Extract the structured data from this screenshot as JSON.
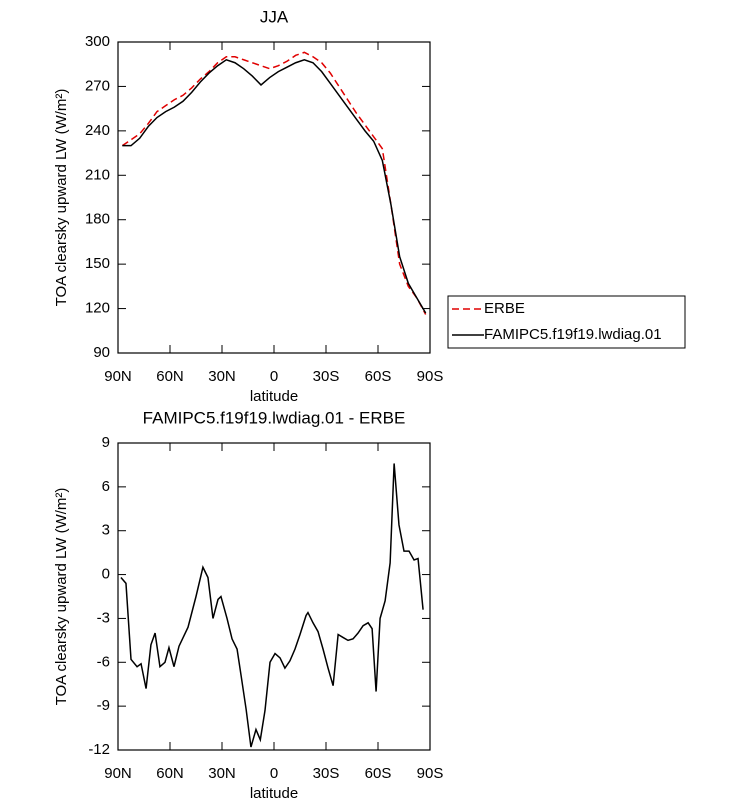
{
  "chart_data": [
    {
      "type": "line",
      "title": "JJA",
      "xlabel": "latitude",
      "ylabel": "TOA clearsky upward LW (W/m²)",
      "x": [
        87.5,
        82.5,
        77.5,
        72.5,
        67.5,
        62.5,
        57.5,
        52.5,
        47.5,
        42.5,
        37.5,
        32.5,
        27.5,
        22.5,
        17.5,
        12.5,
        7.5,
        2.5,
        -2.5,
        -7.5,
        -12.5,
        -17.5,
        -22.5,
        -27.5,
        -32.5,
        -37.5,
        -42.5,
        -47.5,
        -52.5,
        -57.5,
        -62.5,
        -67.5,
        -72.5,
        -77.5,
        -82.5,
        -87.5
      ],
      "series": [
        {
          "name": "ERBE",
          "color": "#e00000",
          "dashed": true,
          "values": [
            230,
            234,
            238,
            245,
            253,
            257,
            261,
            264,
            269,
            275,
            280,
            286,
            290,
            290,
            288,
            286,
            284,
            282,
            284,
            287,
            291,
            293,
            290,
            286,
            279,
            270,
            261,
            252,
            244,
            236,
            228,
            190,
            150,
            135,
            127,
            116
          ]
        },
        {
          "name": "FAMIPC5.f19f19.lwdiag.01",
          "color": "#000000",
          "dashed": false,
          "values": [
            230,
            230,
            235,
            243,
            249,
            253,
            256,
            260,
            266,
            273,
            279,
            284,
            288,
            286,
            282,
            277,
            271,
            276,
            280,
            283,
            286,
            288,
            286,
            280,
            272,
            264,
            256,
            248,
            240,
            233,
            220,
            190,
            155,
            137,
            127,
            117
          ]
        }
      ],
      "xlim": [
        90,
        -90
      ],
      "xticks": [
        {
          "value": 90,
          "label": "90N"
        },
        {
          "value": 60,
          "label": "60N"
        },
        {
          "value": 30,
          "label": "30N"
        },
        0,
        {
          "value": -30,
          "label": "30S"
        },
        {
          "value": -60,
          "label": "60S"
        },
        {
          "value": -90,
          "label": "90S"
        }
      ],
      "ylim": [
        90,
        300
      ],
      "yticks": [
        90,
        120,
        150,
        180,
        210,
        240,
        270,
        300
      ],
      "legend": "outside-right"
    },
    {
      "type": "line",
      "title": "FAMIPC5.f19f19.lwdiag.01 - ERBE",
      "xlabel": "latitude",
      "ylabel": "TOA clearsky upward LW (W/m²)",
      "x": [
        88.3,
        85.4,
        82.5,
        79.0,
        76.7,
        73.8,
        71.0,
        68.6,
        65.8,
        62.9,
        60.6,
        57.7,
        54.8,
        49.6,
        45.0,
        41.0,
        38.1,
        35.2,
        32.3,
        30.6,
        27.1,
        24.2,
        21.3,
        19.0,
        16.1,
        13.3,
        10.4,
        7.9,
        5.2,
        2.3,
        -0.6,
        -3.5,
        -6.3,
        -9.2,
        -12.1,
        -15.0,
        -18.5,
        -19.6,
        -22.5,
        -25.4,
        -28.3,
        -31.2,
        -34.1,
        -37.0,
        -39.8,
        -42.7,
        -45.6,
        -48.5,
        -51.4,
        -54.3,
        -56.6,
        -58.9,
        -61.2,
        -64.1,
        -67.0,
        -69.3,
        -72.1,
        -75.0,
        -77.9,
        -80.8,
        -83.1,
        -86.0
      ],
      "values": [
        -0.2,
        -0.6,
        -5.8,
        -6.3,
        -6.1,
        -7.8,
        -4.8,
        -4.0,
        -6.3,
        -6.0,
        -5.0,
        -6.3,
        -4.9,
        -3.6,
        -1.5,
        0.5,
        -0.2,
        -3.0,
        -1.7,
        -1.5,
        -3.0,
        -4.4,
        -5.1,
        -6.9,
        -9.2,
        -11.8,
        -10.6,
        -11.3,
        -9.3,
        -6.0,
        -5.4,
        -5.7,
        -6.4,
        -5.9,
        -5.1,
        -4.1,
        -2.8,
        -2.6,
        -3.3,
        -3.9,
        -5.1,
        -6.4,
        -7.6,
        -4.1,
        -4.3,
        -4.5,
        -4.4,
        -4.0,
        -3.5,
        -3.3,
        -3.7,
        -8.0,
        -3.0,
        -1.8,
        0.8,
        7.6,
        3.4,
        1.6,
        1.6,
        1.0,
        1.1,
        -2.4
      ],
      "color": "#000000",
      "xlim": [
        90,
        -90
      ],
      "xticks": [
        {
          "value": 90,
          "label": "90N"
        },
        {
          "value": 60,
          "label": "60N"
        },
        {
          "value": 30,
          "label": "30N"
        },
        0,
        {
          "value": -30,
          "label": "30S"
        },
        {
          "value": -60,
          "label": "60S"
        },
        {
          "value": -90,
          "label": "90S"
        }
      ],
      "ylim": [
        -12,
        9
      ],
      "yticks": [
        -12,
        -9,
        -6,
        -3,
        0,
        3,
        6,
        9
      ]
    }
  ]
}
